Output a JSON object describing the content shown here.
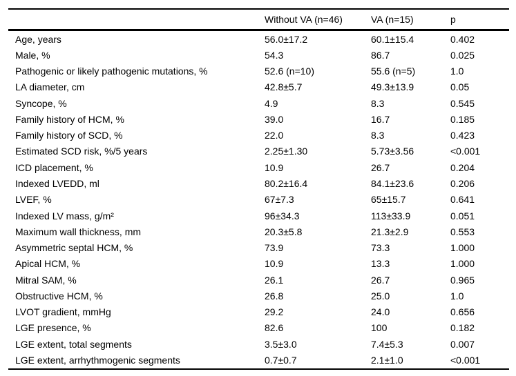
{
  "table": {
    "columns": [
      "",
      "Without VA (n=46)",
      "VA (n=15)",
      "p"
    ],
    "rows": [
      {
        "label": "Age, years",
        "without_va": "56.0±17.2",
        "va": "60.1±15.4",
        "p": "0.402"
      },
      {
        "label": "Male, %",
        "without_va": "54.3",
        "va": "86.7",
        "p": "0.025"
      },
      {
        "label": "Pathogenic or likely pathogenic mutations, %",
        "without_va": "52.6 (n=10)",
        "va": "55.6 (n=5)",
        "p": "1.0"
      },
      {
        "label": "LA diameter, cm",
        "without_va": "42.8±5.7",
        "va": "49.3±13.9",
        "p": "0.05"
      },
      {
        "label": "Syncope, %",
        "without_va": "4.9",
        "va": "8.3",
        "p": "0.545"
      },
      {
        "label": "Family history of HCM, %",
        "without_va": "39.0",
        "va": "16.7",
        "p": "0.185"
      },
      {
        "label": "Family history of SCD, %",
        "without_va": "22.0",
        "va": "8.3",
        "p": "0.423"
      },
      {
        "label": "Estimated SCD risk, %/5 years",
        "without_va": "2.25±1.30",
        "va": "5.73±3.56",
        "p": "<0.001"
      },
      {
        "label": "ICD placement, %",
        "without_va": "10.9",
        "va": "26.7",
        "p": "0.204"
      },
      {
        "label": "Indexed LVEDD, ml",
        "without_va": "80.2±16.4",
        "va": "84.1±23.6",
        "p": "0.206"
      },
      {
        "label": "LVEF, %",
        "without_va": "67±7.3",
        "va": "65±15.7",
        "p": "0.641"
      },
      {
        "label": "Indexed LV mass, g/m²",
        "without_va": "96±34.3",
        "va": "113±33.9",
        "p": "0.051"
      },
      {
        "label": "Maximum wall thickness, mm",
        "without_va": "20.3±5.8",
        "va": "21.3±2.9",
        "p": "0.553"
      },
      {
        "label": "Asymmetric septal HCM, %",
        "without_va": "73.9",
        "va": "73.3",
        "p": "1.000"
      },
      {
        "label": "Apical HCM, %",
        "without_va": "10.9",
        "va": "13.3",
        "p": "1.000"
      },
      {
        "label": "Mitral SAM, %",
        "without_va": "26.1",
        "va": "26.7",
        "p": "0.965"
      },
      {
        "label": "Obstructive HCM, %",
        "without_va": "26.8",
        "va": "25.0",
        "p": "1.0"
      },
      {
        "label": "LVOT gradient, mmHg",
        "without_va": "29.2",
        "va": "24.0",
        "p": "0.656"
      },
      {
        "label": "LGE presence, %",
        "without_va": "82.6",
        "va": "100",
        "p": "0.182"
      },
      {
        "label": "LGE extent, total segments",
        "without_va": "3.5±3.0",
        "va": "7.4±5.3",
        "p": "0.007"
      },
      {
        "label": "LGE extent, arrhythmogenic segments",
        "without_va": "0.7±0.7",
        "va": "2.1±1.0",
        "p": "<0.001"
      }
    ]
  }
}
